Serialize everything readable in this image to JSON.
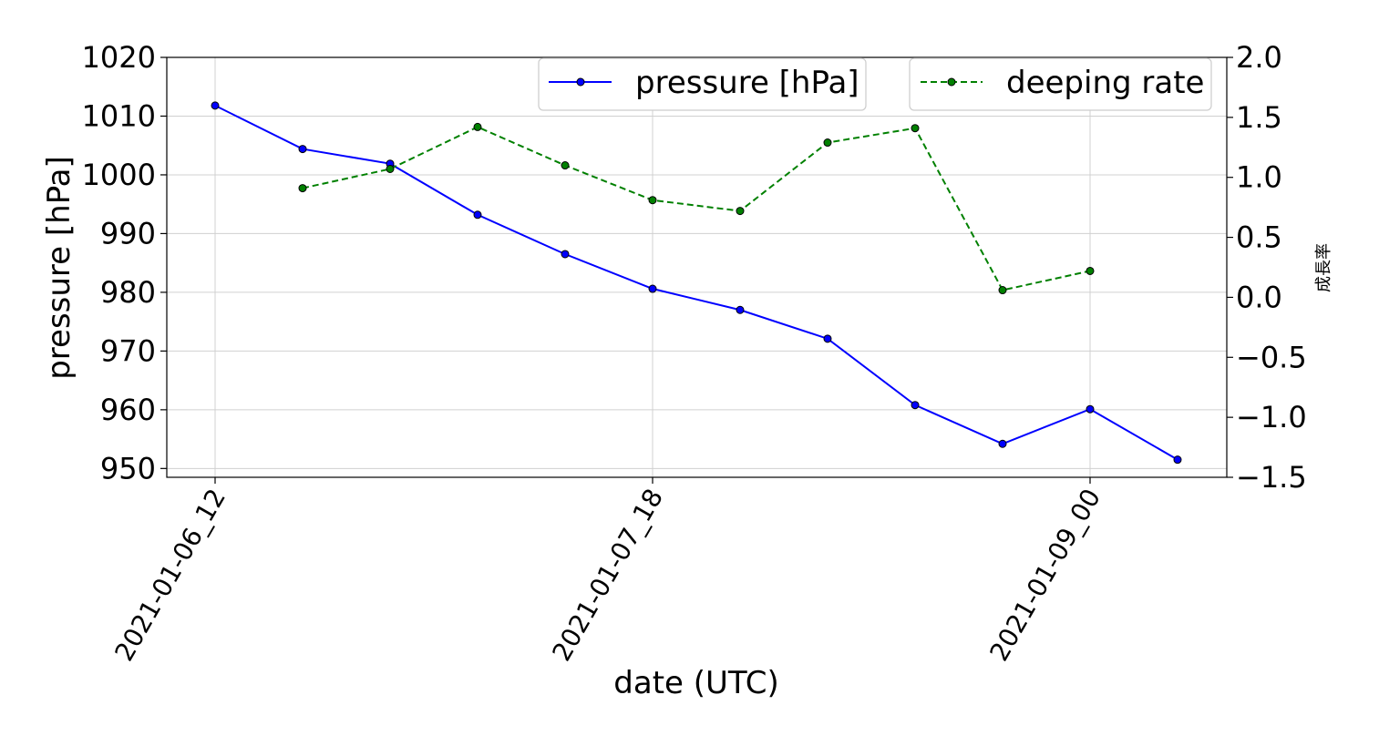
{
  "chart_data": {
    "type": "line",
    "x": [
      "2021-01-06_12",
      "2021-01-06_18",
      "2021-01-07_00",
      "2021-01-07_06",
      "2021-01-07_12",
      "2021-01-07_18",
      "2021-01-08_00",
      "2021-01-08_06",
      "2021-01-08_12",
      "2021-01-08_18",
      "2021-01-09_00",
      "2021-01-09_06"
    ],
    "xtick_labels": [
      "2021-01-06_12",
      "2021-01-07_18",
      "2021-01-09_00"
    ],
    "xlabel": "date (UTC)",
    "ylabel_left": "pressure [hPa]",
    "ylabel_right": "成長率",
    "ylim_left": [
      948.5,
      1020
    ],
    "ylim_right": [
      -1.5,
      2.0
    ],
    "yticks_left": [
      950,
      960,
      970,
      980,
      990,
      1000,
      1010,
      1020
    ],
    "yticks_right": [
      "−1.5",
      "−1.0",
      "−0.5",
      "0.0",
      "0.5",
      "1.0",
      "1.5",
      "2.0"
    ],
    "grid": true,
    "series": [
      {
        "name": "pressure [hPa]",
        "axis": "left",
        "color": "#0000ff",
        "style": "solid",
        "values": [
          1011.8,
          1004.4,
          1001.9,
          993.2,
          986.5,
          980.6,
          977.0,
          972.1,
          960.8,
          954.2,
          960.1,
          951.5
        ]
      },
      {
        "name": "deeping rate",
        "axis": "right",
        "color": "#008000",
        "style": "dashed",
        "values": [
          null,
          0.91,
          1.07,
          1.42,
          1.1,
          0.81,
          0.72,
          1.29,
          1.41,
          0.06,
          0.22,
          null
        ]
      }
    ],
    "legend": [
      "upper center",
      "upper right"
    ]
  }
}
